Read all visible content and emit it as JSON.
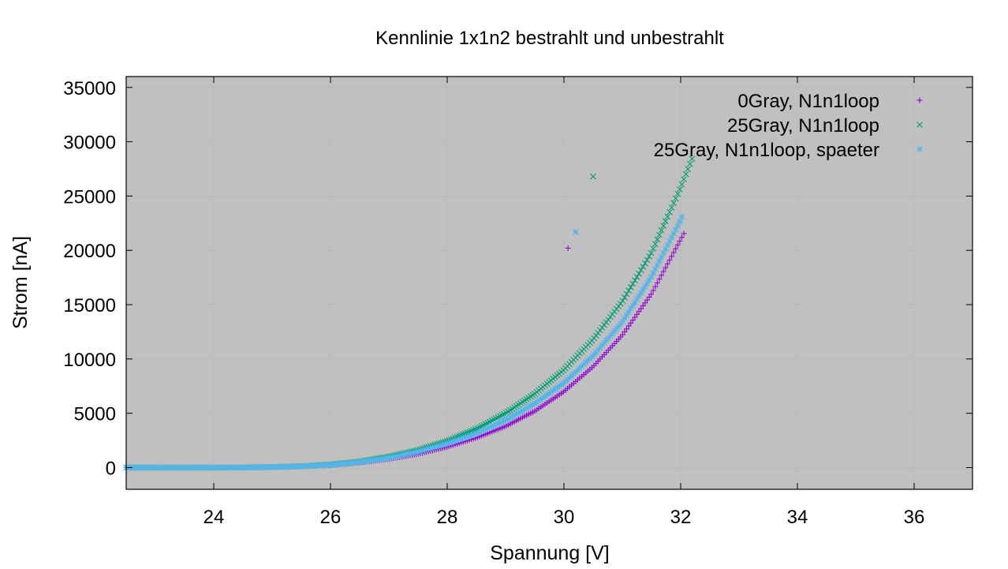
{
  "chart_data": {
    "type": "scatter",
    "title": "Kennlinie 1x1n2 bestrahlt und unbestrahlt",
    "xlabel": "Spannung [V]",
    "ylabel": "Strom [nA]",
    "xlim": [
      22.5,
      37
    ],
    "ylim": [
      -2000,
      36000
    ],
    "xticks": [
      24,
      26,
      28,
      30,
      32,
      34,
      36
    ],
    "yticks": [
      0,
      5000,
      10000,
      15000,
      20000,
      25000,
      30000,
      35000
    ],
    "grid": true,
    "legend_position": "top-right",
    "plot_background": "#c0c0c0",
    "series": [
      {
        "name": "0Gray, N1n1loop",
        "marker": "plus",
        "color": "#9400d3",
        "x": [
          22.5,
          23.0,
          23.5,
          24.0,
          24.5,
          25.0,
          25.5,
          26.0,
          26.5,
          27.0,
          27.5,
          28.0,
          28.5,
          29.0,
          29.5,
          30.0,
          30.5,
          31.0,
          31.5,
          32.0,
          32.08
        ],
        "y": [
          0,
          0,
          0,
          0,
          10,
          40,
          100,
          220,
          450,
          800,
          1250,
          1900,
          2750,
          3800,
          5200,
          7000,
          9300,
          12200,
          16000,
          21000,
          21800
        ],
        "outliers": [
          {
            "x": 30.07,
            "y": 20200
          }
        ]
      },
      {
        "name": "25Gray, N1n1loop",
        "marker": "cross",
        "color": "#009e73",
        "x": [
          22.5,
          23.0,
          23.5,
          24.0,
          24.5,
          25.0,
          25.5,
          26.0,
          26.5,
          27.0,
          27.5,
          28.0,
          28.5,
          29.0,
          29.5,
          30.0,
          30.5,
          31.0,
          31.5,
          32.0,
          32.2
        ],
        "y": [
          0,
          0,
          0,
          0,
          10,
          50,
          120,
          280,
          550,
          1000,
          1600,
          2450,
          3550,
          5000,
          6800,
          9000,
          11800,
          15300,
          19800,
          25800,
          28500
        ],
        "outliers": [
          {
            "x": 30.5,
            "y": 26800
          }
        ]
      },
      {
        "name": "25Gray, N1n1loop, spaeter",
        "marker": "star",
        "color": "#56b4e9",
        "x": [
          22.5,
          23.0,
          23.5,
          24.0,
          24.5,
          25.0,
          25.5,
          26.0,
          26.5,
          27.0,
          27.5,
          28.0,
          28.5,
          29.0,
          29.5,
          30.0,
          30.5,
          31.0,
          31.5,
          32.0,
          32.05
        ],
        "y": [
          0,
          0,
          0,
          0,
          10,
          45,
          110,
          250,
          500,
          900,
          1450,
          2200,
          3150,
          4350,
          5900,
          7800,
          10300,
          13400,
          17600,
          22800,
          23500
        ],
        "outliers": [
          {
            "x": 30.2,
            "y": 21700
          }
        ]
      }
    ]
  }
}
